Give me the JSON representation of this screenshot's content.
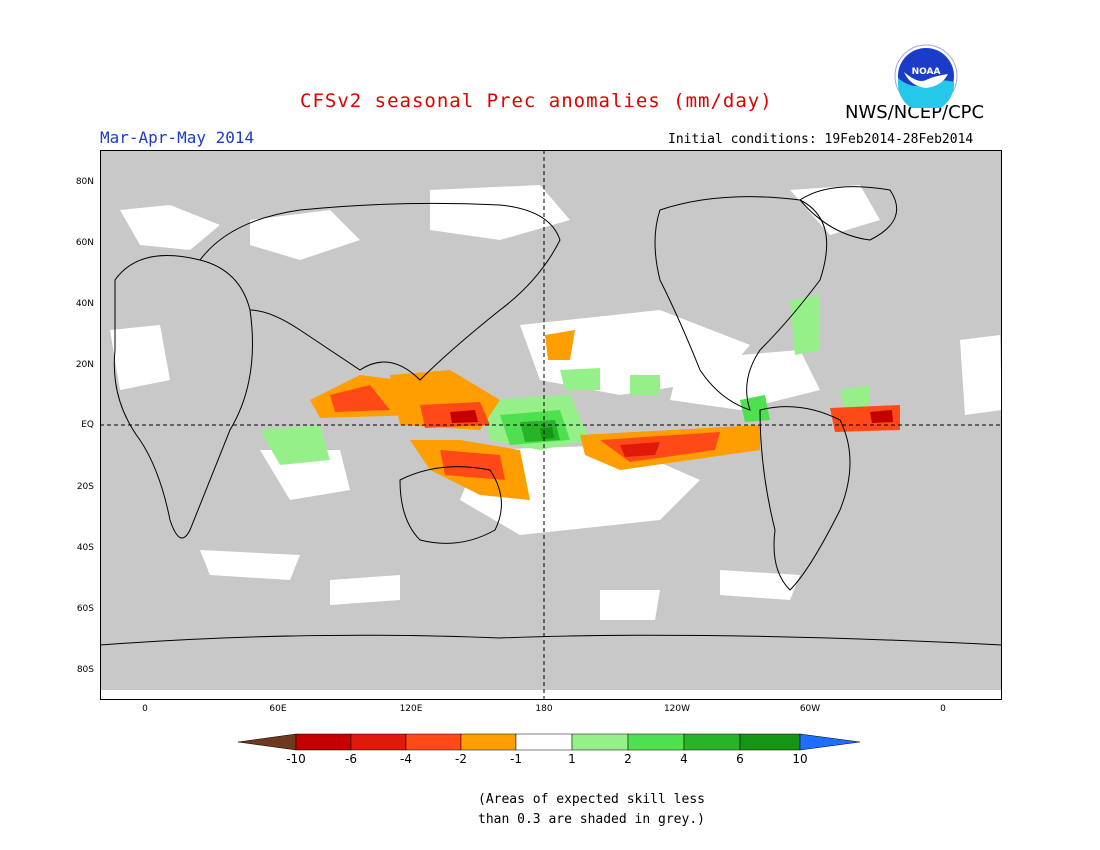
{
  "title": "CFSv2 seasonal Prec anomalies (mm/day)",
  "agency": "NWS/NCEP/CPC",
  "logo_text": "NOAA",
  "season": "Mar-Apr-May 2014",
  "initial_conditions": "Initial conditions: 19Feb2014-28Feb2014",
  "map": {
    "masked_color": "#c8c8c8",
    "lat_ticks": [
      "80N",
      "60N",
      "40N",
      "20N",
      "EQ",
      "20S",
      "40S",
      "60S",
      "80S"
    ],
    "lon_ticks": [
      "0",
      "60E",
      "120E",
      "180",
      "120W",
      "60W",
      "0"
    ]
  },
  "colorbar": {
    "labels": [
      "-10",
      "-6",
      "-4",
      "-2",
      "-1",
      "1",
      "2",
      "4",
      "6",
      "10"
    ],
    "colors": [
      "#6e3a1e",
      "#c40000",
      "#e01a0a",
      "#ff4a18",
      "#ff9e00",
      "#ffffff",
      "#96f08a",
      "#4ee04e",
      "#28b428",
      "#149614",
      "#1e6eff"
    ]
  },
  "note": {
    "line1": "(Areas of expected skill less",
    "line2": "than 0.3 are shaded in grey.)"
  }
}
